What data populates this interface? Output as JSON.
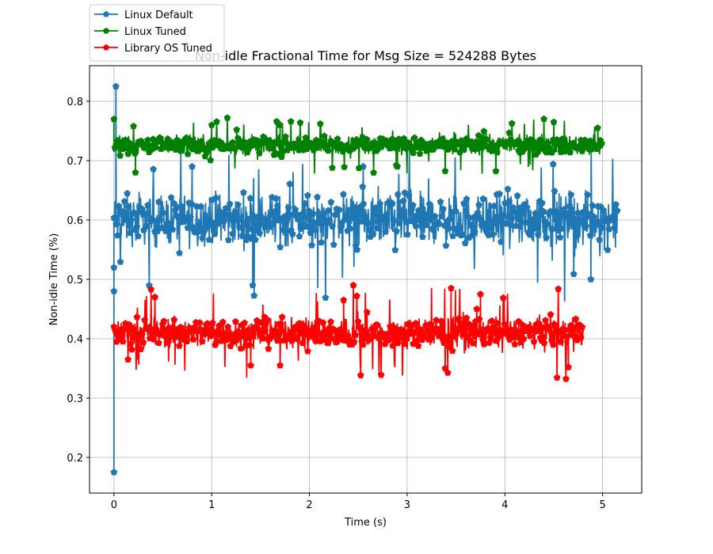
{
  "chart_data": {
    "type": "line",
    "title": "Non-idle Fractional Time for Msg Size = 524288 Bytes",
    "xlabel": "Time (s)",
    "ylabel": "Non-idle Time (%)",
    "xlim": [
      -0.25,
      5.4
    ],
    "ylim": [
      0.14,
      0.86
    ],
    "xticks": [
      0,
      1,
      2,
      3,
      4,
      5
    ],
    "yticks": [
      0.2,
      0.3,
      0.4,
      0.5,
      0.6,
      0.7,
      0.8
    ],
    "grid": true,
    "legend": "top-left",
    "marker": "pentagon",
    "series": [
      {
        "name": "Linux Default",
        "color": "#1f77b4",
        "x_range": [
          0,
          5.15
        ],
        "mean": 0.595,
        "typical_range": [
          0.54,
          0.66
        ],
        "extremes": [
          [
            0.0,
            0.175
          ],
          [
            0.02,
            0.825
          ],
          [
            0.0,
            0.52
          ],
          [
            0.0,
            0.48
          ],
          [
            1.42,
            0.49
          ],
          [
            4.88,
            0.5
          ],
          [
            0.8,
            0.69
          ],
          [
            2.55,
            0.69
          ]
        ]
      },
      {
        "name": "Linux Tuned",
        "color": "#008000",
        "x_range": [
          0,
          5.0
        ],
        "mean": 0.725,
        "typical_range": [
          0.705,
          0.748
        ],
        "extremes": [
          [
            0.0,
            0.77
          ],
          [
            0.22,
            0.68
          ],
          [
            1.0,
            0.76
          ],
          [
            1.7,
            0.76
          ],
          [
            2.9,
            0.69
          ],
          [
            4.5,
            0.765
          ],
          [
            4.95,
            0.755
          ]
        ]
      },
      {
        "name": "Library OS Tuned",
        "color": "#ff0000",
        "x_range": [
          0,
          4.8
        ],
        "mean": 0.408,
        "typical_range": [
          0.375,
          0.445
        ],
        "extremes": [
          [
            2.45,
            0.49
          ],
          [
            3.45,
            0.485
          ],
          [
            3.75,
            0.475
          ],
          [
            1.4,
            0.355
          ],
          [
            1.7,
            0.355
          ],
          [
            4.65,
            0.352
          ],
          [
            2.35,
            0.465
          ]
        ]
      }
    ]
  }
}
